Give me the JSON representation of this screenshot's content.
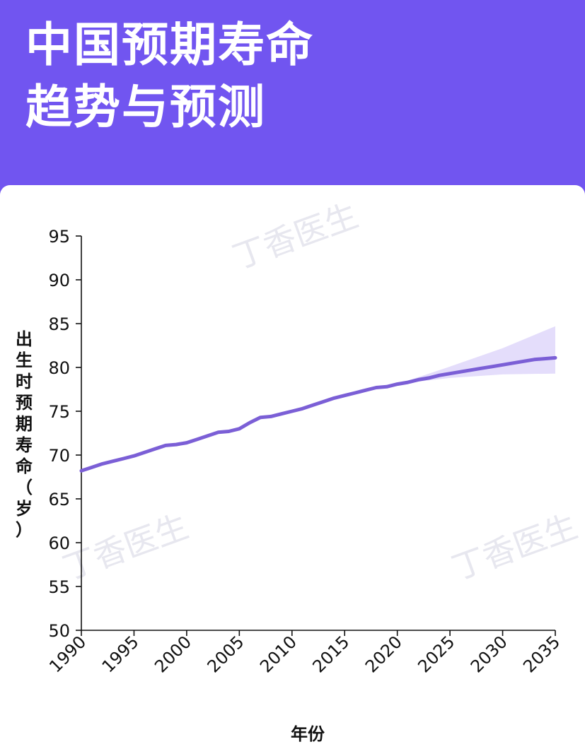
{
  "title": {
    "line1": "中国预期寿命",
    "line2": "趋势与预测"
  },
  "watermark": "丁香医生",
  "chart_data": {
    "type": "line",
    "xlabel": "年份",
    "ylabel": "出生时预期寿命（岁）",
    "xlim": [
      1990,
      2035
    ],
    "ylim": [
      50,
      95
    ],
    "xticks": [
      1990,
      1995,
      2000,
      2005,
      2010,
      2015,
      2020,
      2025,
      2030,
      2035
    ],
    "yticks": [
      50,
      55,
      60,
      65,
      70,
      75,
      80,
      85,
      90,
      95
    ],
    "grid": false,
    "series": [
      {
        "color": "#7b5fd6",
        "points": [
          [
            1990,
            68.2
          ],
          [
            1991,
            68.6
          ],
          [
            1992,
            69.0
          ],
          [
            1993,
            69.3
          ],
          [
            1994,
            69.6
          ],
          [
            1995,
            69.9
          ],
          [
            1996,
            70.3
          ],
          [
            1997,
            70.7
          ],
          [
            1998,
            71.1
          ],
          [
            1999,
            71.2
          ],
          [
            2000,
            71.4
          ],
          [
            2001,
            71.8
          ],
          [
            2002,
            72.2
          ],
          [
            2003,
            72.6
          ],
          [
            2004,
            72.7
          ],
          [
            2005,
            73.0
          ],
          [
            2006,
            73.7
          ],
          [
            2007,
            74.3
          ],
          [
            2008,
            74.4
          ],
          [
            2009,
            74.7
          ],
          [
            2010,
            75.0
          ],
          [
            2011,
            75.3
          ],
          [
            2012,
            75.7
          ],
          [
            2013,
            76.1
          ],
          [
            2014,
            76.5
          ],
          [
            2015,
            76.8
          ],
          [
            2016,
            77.1
          ],
          [
            2017,
            77.4
          ],
          [
            2018,
            77.7
          ],
          [
            2019,
            77.8
          ],
          [
            2020,
            78.1
          ],
          [
            2021,
            78.3
          ],
          [
            2022,
            78.6
          ],
          [
            2023,
            78.8
          ],
          [
            2024,
            79.1
          ],
          [
            2025,
            79.3
          ],
          [
            2026,
            79.5
          ],
          [
            2027,
            79.7
          ],
          [
            2028,
            79.9
          ],
          [
            2029,
            80.1
          ],
          [
            2030,
            80.3
          ],
          [
            2031,
            80.5
          ],
          [
            2032,
            80.7
          ],
          [
            2033,
            80.9
          ],
          [
            2034,
            81.0
          ],
          [
            2035,
            81.1
          ]
        ]
      }
    ],
    "uncertainty_band": {
      "color": "#e4ddfb",
      "x": [
        2020,
        2025,
        2030,
        2035
      ],
      "lower": [
        78.1,
        78.8,
        79.2,
        79.3
      ],
      "upper": [
        78.1,
        80.1,
        82.2,
        84.7
      ]
    }
  }
}
